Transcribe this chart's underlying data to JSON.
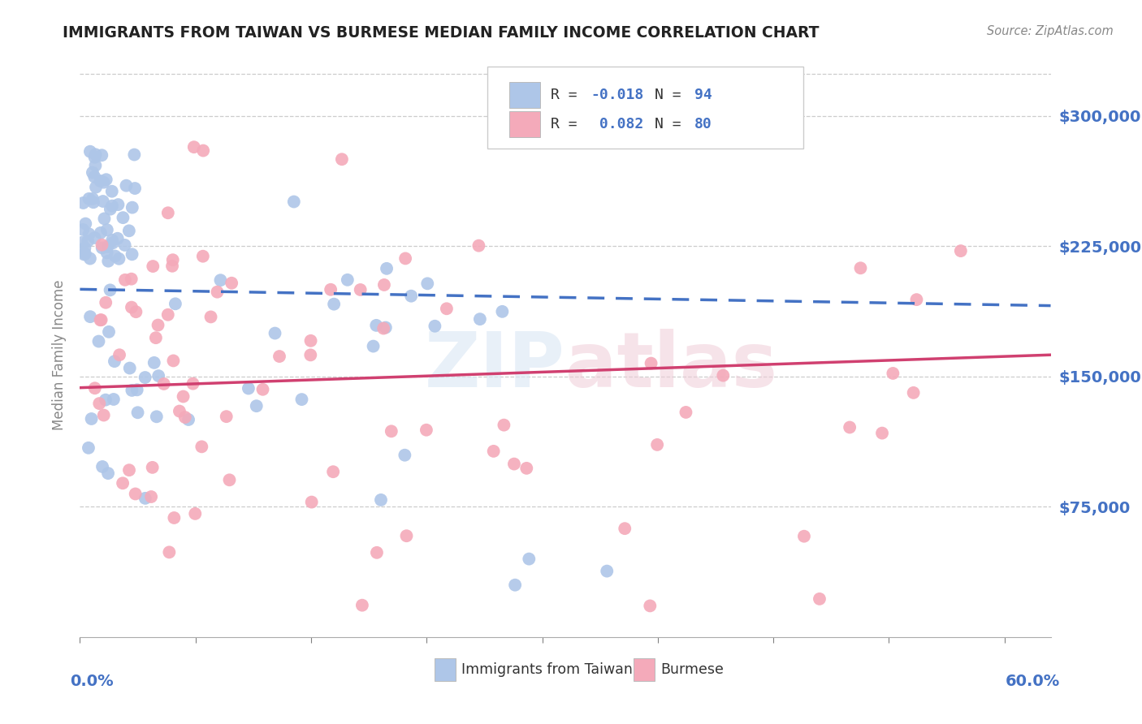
{
  "title": "IMMIGRANTS FROM TAIWAN VS BURMESE MEDIAN FAMILY INCOME CORRELATION CHART",
  "source": "Source: ZipAtlas.com",
  "ylabel": "Median Family Income",
  "ytick_values": [
    75000,
    150000,
    225000,
    300000
  ],
  "ymin": 0,
  "ymax": 325000,
  "xmin": 0.0,
  "xmax": 0.63,
  "taiwan_R": -0.018,
  "taiwan_N": 94,
  "burmese_R": 0.082,
  "burmese_N": 80,
  "taiwan_color": "#aec6e8",
  "burmese_color": "#f4aaba",
  "taiwan_line_color": "#4472c4",
  "burmese_line_color": "#d04070",
  "legend_label1": "Immigrants from Taiwan",
  "legend_label2": "Burmese",
  "background_color": "#ffffff",
  "grid_color": "#cccccc",
  "watermark_color": "#dce8f5"
}
